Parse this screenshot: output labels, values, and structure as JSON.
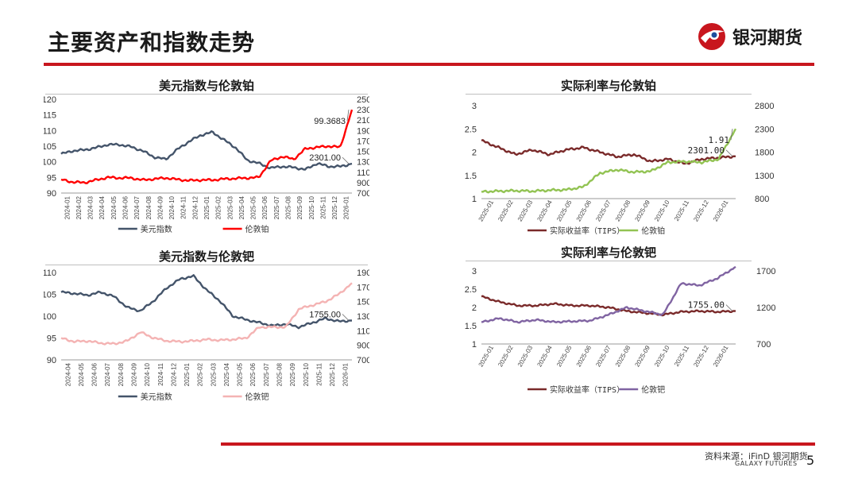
{
  "header": {
    "title": "主要资产和指数走势",
    "brand": "银河期货"
  },
  "footer": {
    "source": "资料来源：iFinD 银河期货",
    "brand_en": "GALAXY FUTURES",
    "page_number": "5"
  },
  "colors": {
    "accent": "#c8161e",
    "usd": "#44546a",
    "pt": "#ff0000",
    "pd": "#f4b3b3",
    "tips": "#7a2a2a",
    "pt_green": "#92c353",
    "pd_purple": "#8064a2"
  },
  "chart_data": [
    {
      "id": "usd_pt",
      "type": "line",
      "title": "美元指数与伦敦铂",
      "x_ticks": [
        "2024-01",
        "2024-02",
        "2024-03",
        "2024-04",
        "2024-05",
        "2024-06",
        "2024-07",
        "2024-08",
        "2024-09",
        "2024-10",
        "2024-11",
        "2024-12",
        "2025-01",
        "2025-02",
        "2025-03",
        "2025-04",
        "2025-05",
        "2025-06",
        "2025-07",
        "2025-08",
        "2025-09",
        "2025-10",
        "2025-11",
        "2025-12",
        "2026-01"
      ],
      "left_axis": {
        "min": 90,
        "max": 120,
        "ticks": [
          90,
          95,
          100,
          105,
          110,
          115,
          120
        ]
      },
      "right_axis": {
        "min": 700,
        "max": 2500,
        "ticks": [
          700,
          900,
          1100,
          1300,
          1500,
          1700,
          1900,
          2100,
          2300,
          2500
        ]
      },
      "series": [
        {
          "name": "美元指数",
          "axis": "left",
          "color": "#44546a",
          "values": [
            102.5,
            103.5,
            103.8,
            104.5,
            105.5,
            105.5,
            104.8,
            103.5,
            101.5,
            100.8,
            104,
            106.5,
            108.5,
            109.5,
            107,
            104.5,
            100.5,
            99.5,
            98,
            98.5,
            98.2,
            97.5,
            99.5,
            98.5,
            98.5,
            99.37
          ]
        },
        {
          "name": "伦敦铂",
          "axis": "right",
          "color": "#ff0000",
          "values": [
            960,
            910,
            900,
            950,
            1000,
            990,
            990,
            950,
            970,
            990,
            960,
            940,
            950,
            950,
            970,
            980,
            990,
            1000,
            1320,
            1400,
            1350,
            1550,
            1580,
            1600,
            1580,
            2300
          ]
        }
      ],
      "annotations": [
        {
          "text": "2301.00"
        },
        {
          "text": "99.3683"
        }
      ]
    },
    {
      "id": "usd_pd",
      "type": "line",
      "title": "美元指数与伦敦钯",
      "x_ticks": [
        "2024-04",
        "2024-05",
        "2024-06",
        "2024-07",
        "2024-08",
        "2024-09",
        "2024-10",
        "2024-11",
        "2024-12",
        "2025-01",
        "2025-02",
        "2025-03",
        "2025-04",
        "2025-05",
        "2025-06",
        "2025-07",
        "2025-08",
        "2025-09",
        "2025-10",
        "2025-11",
        "2025-12",
        "2026-01"
      ],
      "left_axis": {
        "min": 90,
        "max": 110,
        "ticks": [
          90,
          95,
          100,
          105,
          110
        ]
      },
      "right_axis": {
        "min": 700,
        "max": 1900,
        "ticks": [
          700,
          900,
          1100,
          1300,
          1500,
          1700,
          1900
        ]
      },
      "series": [
        {
          "name": "美元指数",
          "axis": "left",
          "color": "#44546a",
          "values": [
            105.5,
            105.2,
            104.8,
            105.5,
            104.5,
            102,
            101.2,
            103.5,
            106.5,
            108.5,
            109.2,
            106,
            103.5,
            100,
            99.2,
            98.5,
            97.8,
            98.2,
            97.5,
            98.5,
            99.5,
            98.8,
            99
          ]
        },
        {
          "name": "伦敦钯",
          "axis": "right",
          "color": "#f4b3b3",
          "values": [
            1000,
            950,
            960,
            930,
            920,
            960,
            1080,
            1000,
            960,
            950,
            960,
            980,
            970,
            980,
            1000,
            1150,
            1150,
            1150,
            1400,
            1450,
            1500,
            1600,
            1755
          ]
        }
      ],
      "annotations": [
        {
          "text": "1755.00"
        }
      ]
    },
    {
      "id": "tips_pt",
      "type": "line",
      "title": "实际利率与伦敦铂",
      "x_ticks": [
        "2025-01",
        "2025-02",
        "2025-03",
        "2025-04",
        "2025-05",
        "2025-06",
        "2025-07",
        "2025-08",
        "2025-09",
        "2025-10",
        "2025-11",
        "2025-12",
        "2026-01"
      ],
      "left_axis": {
        "min": 1,
        "max": 3,
        "ticks": [
          1,
          1.5,
          2,
          2.5,
          3
        ]
      },
      "right_axis": {
        "min": 800,
        "max": 2800,
        "ticks": [
          800,
          1300,
          1800,
          2300,
          2800
        ]
      },
      "series": [
        {
          "name": "实际收益率（TIPS）",
          "axis": "left",
          "color": "#7a2a2a",
          "values": [
            2.25,
            2.1,
            1.95,
            2.05,
            1.95,
            2.05,
            2.1,
            2.0,
            1.9,
            1.95,
            1.8,
            1.85,
            1.75,
            1.85,
            1.88,
            1.91
          ]
        },
        {
          "name": "伦敦铂",
          "axis": "right",
          "color": "#92c353",
          "values": [
            950,
            960,
            970,
            960,
            980,
            990,
            1050,
            1350,
            1420,
            1370,
            1390,
            1580,
            1600,
            1580,
            1650,
            2301
          ]
        }
      ],
      "annotations": [
        {
          "text": "2301.00"
        },
        {
          "text": "1.91"
        }
      ]
    },
    {
      "id": "tips_pd",
      "type": "line",
      "title": "实际利率与伦敦钯",
      "x_ticks": [
        "2025-01",
        "2025-02",
        "2025-03",
        "2025-04",
        "2025-05",
        "2025-06",
        "2025-07",
        "2025-08",
        "2025-09",
        "2025-10",
        "2025-11",
        "2025-12",
        "2026-01"
      ],
      "left_axis": {
        "min": 1,
        "max": 3,
        "ticks": [
          1,
          1.5,
          2,
          2.5,
          3
        ]
      },
      "right_axis": {
        "min": 700,
        "max": 1700,
        "ticks": [
          700,
          1200,
          1700
        ]
      },
      "series": [
        {
          "name": "实际收益率（TIPS）",
          "axis": "left",
          "color": "#7a2a2a",
          "values": [
            2.3,
            2.15,
            2.05,
            2.05,
            2.1,
            2.05,
            2.05,
            2.0,
            1.9,
            1.85,
            1.8,
            1.88,
            1.9,
            1.88,
            1.9
          ]
        },
        {
          "name": "伦敦钯",
          "axis": "right",
          "color": "#8064a2",
          "values": [
            1000,
            1050,
            1000,
            1030,
            1000,
            1010,
            1020,
            1100,
            1200,
            1150,
            1100,
            1530,
            1500,
            1600,
            1755
          ]
        }
      ],
      "annotations": [
        {
          "text": "1755.00"
        }
      ]
    }
  ]
}
